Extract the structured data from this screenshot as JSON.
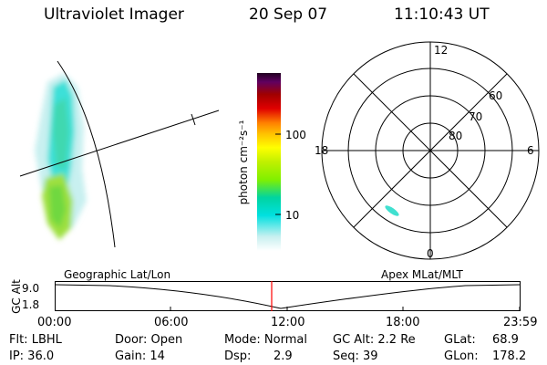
{
  "header": {
    "title": "Ultraviolet Imager",
    "date": "20 Sep 07",
    "time": "11:10:43 UT"
  },
  "colorbar": {
    "unit_label": "photon cm⁻²s⁻¹",
    "tick_100": "100",
    "tick_10": "10",
    "colors": [
      "#ffffff",
      "#c8f0f0",
      "#00e0e0",
      "#00d4a0",
      "#80f000",
      "#c0f000",
      "#ffff00",
      "#ffc000",
      "#ff8000",
      "#e00000",
      "#a00000",
      "#600060",
      "#200020"
    ]
  },
  "polar": {
    "mlt_labels": {
      "top": "12",
      "left": "18",
      "right": "6",
      "bottom": "0"
    },
    "lat_labels": [
      "60",
      "70",
      "80"
    ]
  },
  "timeline": {
    "y_axis_label": "GC Alt",
    "y_max": "9.0",
    "y_min": "1.8",
    "left_caption": "Geographic Lat/Lon",
    "right_caption": "Apex  MLat/MLT",
    "x_ticks": [
      "00:00",
      "06:00",
      "12:00",
      "18:00",
      "23:59"
    ],
    "marker_color": "#ff0000"
  },
  "status": {
    "flt": "Flt: LBHL",
    "door": "Door: Open",
    "mode": "Mode: Normal",
    "gc_alt": "GC Alt: 2.2 Re",
    "glat": "GLat:",
    "glat_val": "68.9",
    "ip": "IP: 36.0",
    "gain": "Gain: 14",
    "dsp": "Dsp:",
    "dsp_val": "2.9",
    "seq": "Seq: 39",
    "glon": "GLon:",
    "glon_val": "178.2"
  }
}
